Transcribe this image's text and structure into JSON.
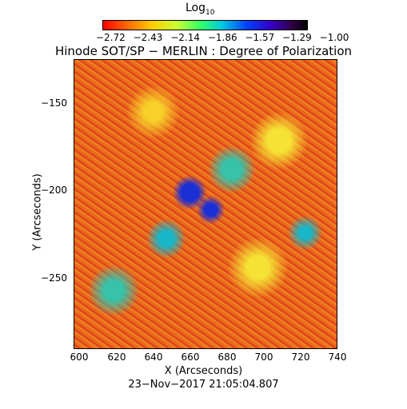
{
  "colorbar": {
    "title_main": "Log",
    "title_sub": "10",
    "ticks": [
      "−2.72",
      "−2.43",
      "−2.14",
      "−1.86",
      "−1.57",
      "−1.29",
      "−1.00"
    ],
    "colors": [
      "#ff0000",
      "#ff6a00",
      "#ffcc00",
      "#ccff33",
      "#33ff66",
      "#00ccdd",
      "#0044ff",
      "#3300cc",
      "#33004d",
      "#000000"
    ]
  },
  "title": "Hinode SOT/SP − MERLIN : Degree of Polarization",
  "axes": {
    "xlabel": "X (Arcseconds)",
    "ylabel": "Y (Arcseconds)",
    "xticks": [
      "600",
      "620",
      "640",
      "660",
      "680",
      "700",
      "720",
      "740"
    ],
    "yticks": [
      "−150",
      "−200",
      "−250"
    ]
  },
  "timestamp": "23−Nov−2017 21:05:04.807"
}
